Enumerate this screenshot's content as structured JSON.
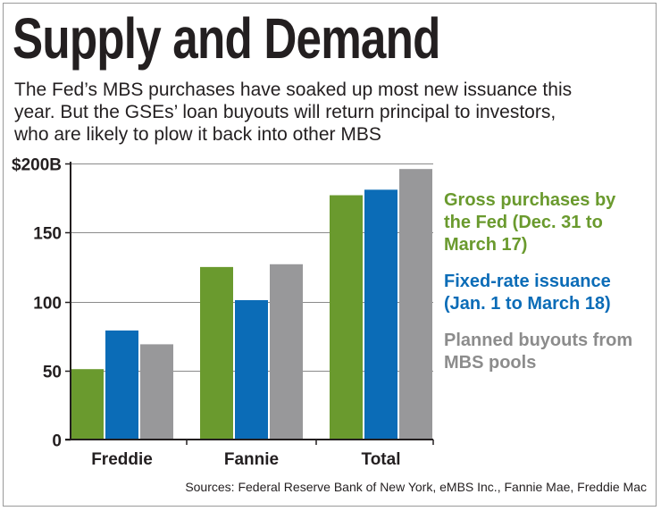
{
  "title": "Supply and Demand",
  "subtitle_lines": [
    "The Fed’s MBS purchases have soaked up most new issuance this",
    "year. But the GSEs’ loan buyouts will return principal to investors,",
    "who are likely to plow it back into other MBS"
  ],
  "source": "Sources: Federal Reserve Bank of New York, eMBS Inc., Fannie Mae, Freddie Mac",
  "legend": [
    {
      "lines": [
        "Gross purchases by",
        "the Fed (Dec. 31 to",
        "March 17)"
      ],
      "color": "#6a9a2e"
    },
    {
      "lines": [
        "Fixed-rate issuance",
        "(Jan. 1 to March 18)"
      ],
      "color": "#0b6cb7"
    },
    {
      "lines": [
        "Planned buyouts from",
        "MBS pools"
      ],
      "color": "#8c8c8c"
    }
  ],
  "chart_data": {
    "type": "bar",
    "categories": [
      "Freddie",
      "Fannie",
      "Total"
    ],
    "series": [
      {
        "name": "Gross purchases by the Fed (Dec. 31 to March 17)",
        "color": "#6a9a2e",
        "values": [
          51,
          125,
          177
        ]
      },
      {
        "name": "Fixed-rate issuance (Jan. 1 to March 18)",
        "color": "#0b6cb7",
        "values": [
          79,
          101,
          181
        ]
      },
      {
        "name": "Planned buyouts from MBS pools",
        "color": "#98989a",
        "values": [
          69,
          127,
          196
        ]
      }
    ],
    "yticks": [
      0,
      50,
      100,
      150,
      200
    ],
    "ytick_labels": [
      "0",
      "50",
      "100",
      "150",
      "$200B"
    ],
    "ylim": [
      0,
      200
    ],
    "grid": true,
    "legend_position": "right"
  }
}
